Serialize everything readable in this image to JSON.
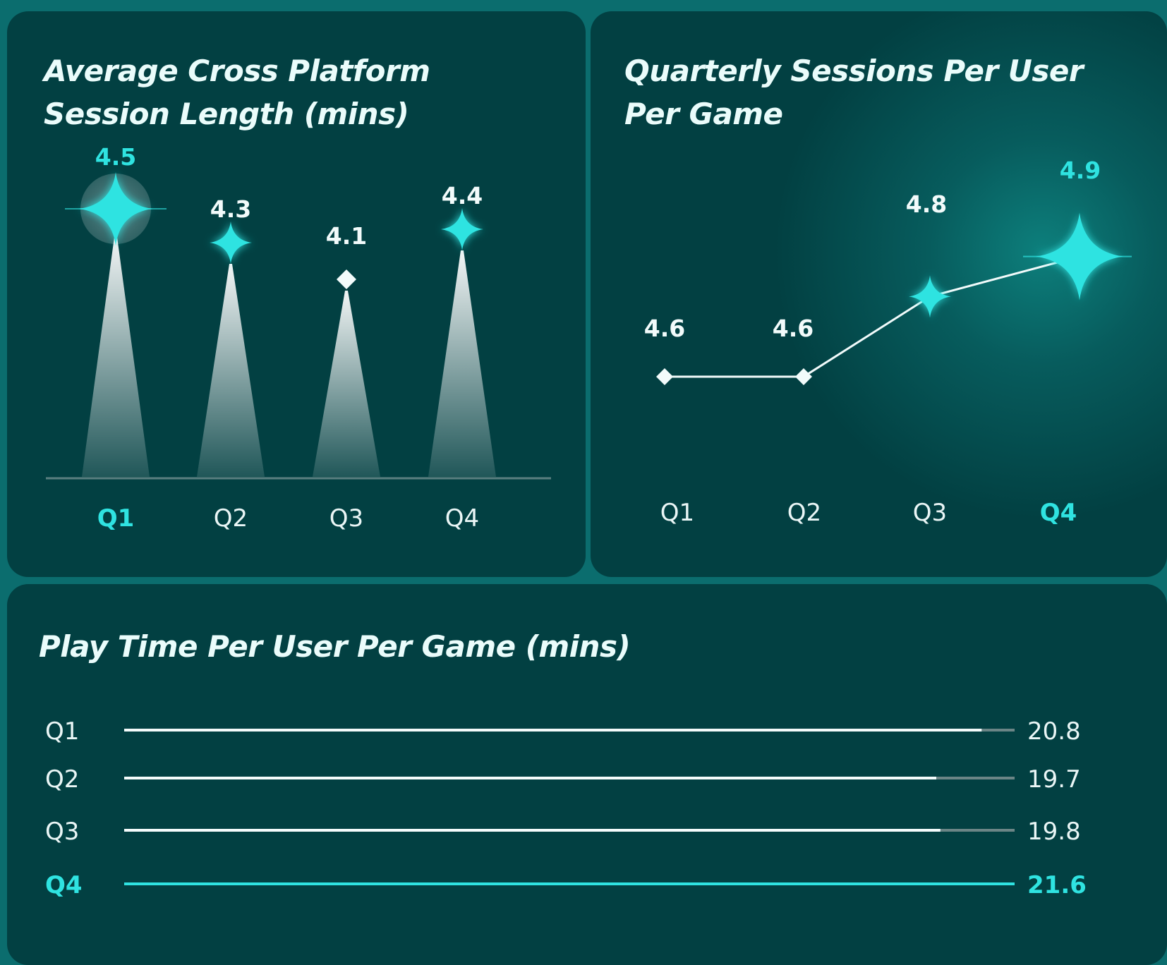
{
  "colors": {
    "background": "#0b6d6e",
    "panel": "#024042",
    "accent": "#2fe3e1",
    "text": "#eafcfb"
  },
  "chart_data": [
    {
      "type": "bar",
      "title": "Average Cross Platform Session Length (mins)",
      "categories": [
        "Q1",
        "Q2",
        "Q3",
        "Q4"
      ],
      "values": [
        4.5,
        4.3,
        4.1,
        4.4
      ],
      "value_labels": [
        "4.5",
        "4.3",
        "4.1",
        "4.4"
      ],
      "highlight": "Q1",
      "marker_icons": [
        "sparkle-icon",
        "sparkle-icon",
        "diamond-icon",
        "sparkle-icon"
      ]
    },
    {
      "type": "line",
      "title": "Quarterly Sessions Per User Per Game",
      "categories": [
        "Q1",
        "Q2",
        "Q3",
        "Q4"
      ],
      "values": [
        4.6,
        4.6,
        4.8,
        4.9
      ],
      "value_labels": [
        "4.6",
        "4.6",
        "4.8",
        "4.9"
      ],
      "highlight": "Q4",
      "marker_icons": [
        "diamond-icon",
        "diamond-icon",
        "sparkle-icon",
        "sparkle-icon"
      ]
    },
    {
      "type": "bar",
      "orientation": "horizontal",
      "title": "Play Time Per User Per Game (mins)",
      "categories": [
        "Q1",
        "Q2",
        "Q3",
        "Q4"
      ],
      "values": [
        20.8,
        19.7,
        19.8,
        21.6
      ],
      "value_labels": [
        "20.8",
        "19.7",
        "19.8",
        "21.6"
      ],
      "max": 21.6,
      "highlight": "Q4"
    }
  ]
}
